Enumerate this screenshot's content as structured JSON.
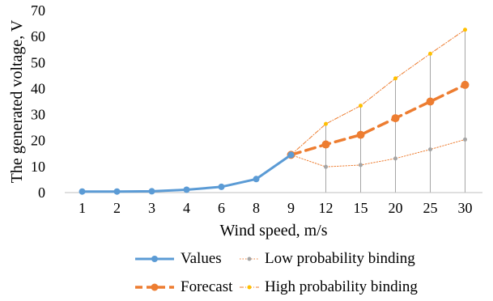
{
  "chart_data": {
    "type": "line",
    "xlabel": "Wind speed, m/s",
    "ylabel": "The generated voltage, V",
    "categories": [
      "1",
      "2",
      "3",
      "4",
      "6",
      "8",
      "9",
      "12",
      "15",
      "20",
      "25",
      "30"
    ],
    "ylim": [
      0,
      70
    ],
    "yticks": [
      0,
      10,
      20,
      30,
      40,
      50,
      60,
      70
    ],
    "grid": false,
    "legend_position": "bottom",
    "series": [
      {
        "name": "Values",
        "color": "#5B9BD5",
        "style": "solid",
        "values": [
          0.4,
          0.4,
          0.5,
          1.1,
          2.2,
          5.2,
          14.5,
          null,
          null,
          null,
          null,
          null
        ]
      },
      {
        "name": "Forecast",
        "color": "#ED7D31",
        "style": "dashed",
        "values": [
          null,
          null,
          null,
          null,
          null,
          null,
          14.5,
          18.5,
          22.2,
          28.6,
          35.0,
          41.4
        ]
      },
      {
        "name": "Low probability binding",
        "color": "#A5A5A5",
        "style": "dotted",
        "values": [
          null,
          null,
          null,
          null,
          null,
          null,
          14.5,
          9.9,
          10.6,
          13.1,
          16.6,
          20.4
        ]
      },
      {
        "name": "High probability binding",
        "color": "#FFC000",
        "style": "dash-dot",
        "values": [
          null,
          null,
          null,
          null,
          null,
          null,
          14.5,
          26.4,
          33.4,
          43.9,
          53.4,
          62.6
        ]
      }
    ],
    "error_bars": {
      "color": "#A5A5A5",
      "from_series": "Low probability binding",
      "to_series": "High probability binding"
    }
  },
  "legend": {
    "values": "Values",
    "forecast": "Forecast",
    "low": "Low probability binding",
    "high": "High probability binding"
  }
}
